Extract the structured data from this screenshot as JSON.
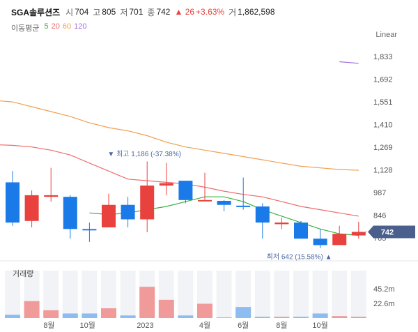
{
  "header": {
    "name": "SGA솔루션즈",
    "open_label": "시",
    "open": "704",
    "high_label": "고",
    "high": "805",
    "low_label": "저",
    "low": "701",
    "close_label": "종",
    "close": "742",
    "change": "▲ 26",
    "change_pct": "+3.63%",
    "volume_label": "거",
    "volume": "1,862,598"
  },
  "ma_legend": {
    "title": "이동평균",
    "items": [
      {
        "label": "5",
        "color": "#3cb043"
      },
      {
        "label": "20",
        "color": "#f06a6a"
      },
      {
        "label": "60",
        "color": "#f0a050"
      },
      {
        "label": "120",
        "color": "#a070e0"
      }
    ]
  },
  "scale_mode": "Linear",
  "colors": {
    "up": "#e8413e",
    "down": "#1a7be8",
    "up_vol": "#f09a9a",
    "down_vol": "#8cbcf0",
    "current": "#4a5f8c"
  },
  "chart_data": {
    "type": "candlestick",
    "price_axis_ticks": [
      "1,833",
      "1,692",
      "1,551",
      "1,410",
      "1,269",
      "1,128",
      "987",
      "846",
      "705"
    ],
    "ylim": [
      640,
      1880
    ],
    "candles": [
      {
        "open": 1050,
        "high": 1120,
        "low": 780,
        "close": 800
      },
      {
        "open": 810,
        "high": 1000,
        "low": 770,
        "close": 970
      },
      {
        "open": 960,
        "high": 1140,
        "low": 930,
        "close": 970
      },
      {
        "open": 960,
        "high": 970,
        "low": 700,
        "close": 760
      },
      {
        "open": 760,
        "high": 800,
        "low": 680,
        "close": 755
      },
      {
        "open": 770,
        "high": 980,
        "low": 770,
        "close": 910
      },
      {
        "open": 910,
        "high": 960,
        "low": 770,
        "close": 820
      },
      {
        "open": 820,
        "high": 1180,
        "low": 740,
        "close": 1030
      },
      {
        "open": 1030,
        "high": 1170,
        "low": 970,
        "close": 1045
      },
      {
        "open": 1060,
        "high": 1060,
        "low": 920,
        "close": 940
      },
      {
        "open": 940,
        "high": 1110,
        "low": 940,
        "close": 940
      },
      {
        "open": 935,
        "high": 940,
        "low": 870,
        "close": 910
      },
      {
        "open": 905,
        "high": 1080,
        "low": 880,
        "close": 900
      },
      {
        "open": 900,
        "high": 920,
        "low": 700,
        "close": 800
      },
      {
        "open": 790,
        "high": 830,
        "low": 760,
        "close": 800
      },
      {
        "open": 800,
        "high": 810,
        "low": 700,
        "close": 700
      },
      {
        "open": 700,
        "high": 760,
        "low": 642,
        "close": 660
      },
      {
        "open": 660,
        "high": 780,
        "low": 660,
        "close": 730
      },
      {
        "open": 720,
        "high": 805,
        "low": 700,
        "close": 742
      }
    ],
    "ma": [
      {
        "label": "5",
        "values": [
          null,
          null,
          null,
          null,
          860,
          850,
          860,
          880,
          900,
          930,
          960,
          960,
          930,
          880,
          840,
          800,
          760,
          730,
          720
        ]
      },
      {
        "label": "20",
        "values": [
          1280,
          1270,
          1250,
          1220,
          1170,
          1120,
          1070,
          1060,
          1050,
          1040,
          1020,
          995,
          975,
          960,
          930,
          900,
          880,
          860,
          840
        ]
      },
      {
        "label": "60",
        "values": [
          1550,
          1520,
          1490,
          1460,
          1420,
          1390,
          1370,
          1340,
          1300,
          1270,
          1250,
          1230,
          1210,
          1190,
          1170,
          1150,
          1140,
          1130,
          1125
        ]
      },
      {
        "label": "120",
        "values": [
          null,
          null,
          null,
          null,
          null,
          null,
          null,
          null,
          null,
          null,
          null,
          null,
          null,
          null,
          null,
          null,
          null,
          1800,
          1790
        ]
      }
    ],
    "annotations": {
      "high": {
        "text": "▼ 최고 1,186 (-37.38%)",
        "value": 1186,
        "index": 7
      },
      "low": {
        "text": "최저 642 (15.58%) ▲",
        "value": 642,
        "index": 16
      },
      "current": {
        "text": "742",
        "value": 742
      }
    },
    "volume": {
      "title": "거래량",
      "axis_ticks": [
        "45.2m",
        "22.6m"
      ],
      "ylim": [
        0,
        60
      ],
      "values": [
        5,
        26,
        12,
        7,
        7,
        15,
        4,
        48,
        28,
        4,
        22,
        1,
        17,
        2,
        2,
        2,
        7,
        3,
        2
      ]
    },
    "x_ticks": [
      "8월",
      "10월",
      "2023",
      "4월",
      "6월",
      "8월",
      "10월"
    ],
    "x_tick_positions": [
      1.9,
      3.9,
      6.9,
      10.0,
      12.0,
      14.0,
      16.0
    ]
  }
}
